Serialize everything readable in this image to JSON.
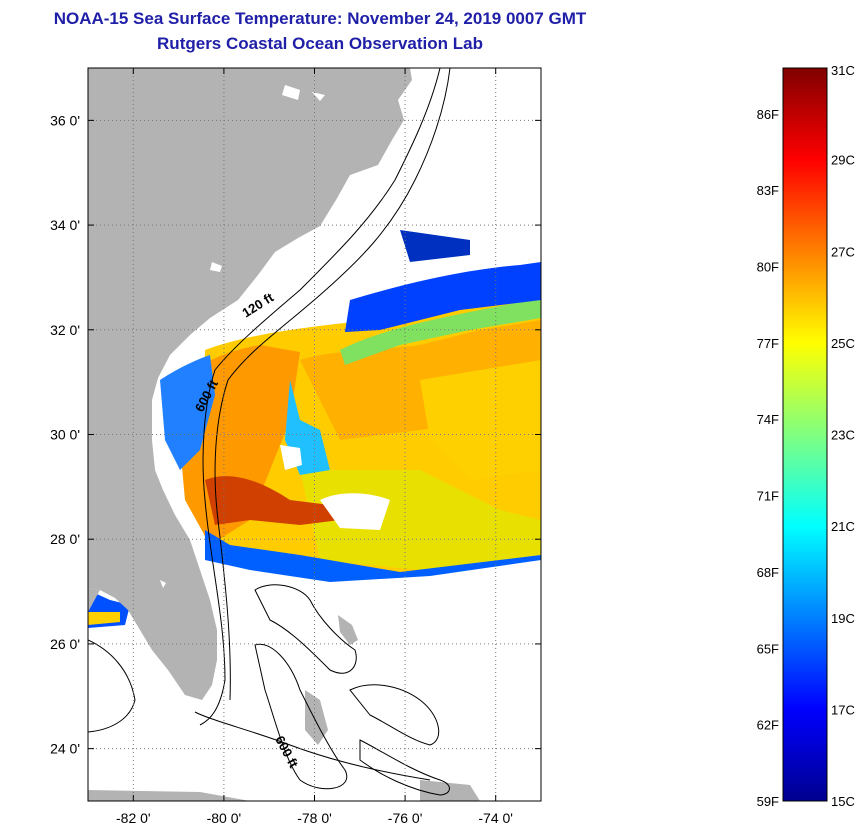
{
  "title": "NOAA-15 Sea Surface Temperature:  November 24, 2019 0007 GMT",
  "subtitle": "Rutgers Coastal Ocean Observation Lab",
  "map": {
    "lon_range": [
      -83,
      -73
    ],
    "lat_range": [
      23,
      37
    ],
    "lon_ticks": [
      {
        "value": -82,
        "label": "-82 0'"
      },
      {
        "value": -80,
        "label": "-80 0'"
      },
      {
        "value": -78,
        "label": "-78 0'"
      },
      {
        "value": -76,
        "label": "-76 0'"
      },
      {
        "value": -74,
        "label": "-74 0'"
      }
    ],
    "lat_ticks": [
      {
        "value": 36,
        "label": "36 0'"
      },
      {
        "value": 34,
        "label": "34 0'"
      },
      {
        "value": 32,
        "label": "32 0'"
      },
      {
        "value": 30,
        "label": "30 0'"
      },
      {
        "value": 28,
        "label": "28 0'"
      },
      {
        "value": 26,
        "label": "26 0'"
      },
      {
        "value": 24,
        "label": "24 0'"
      }
    ],
    "contour_labels": [
      {
        "text": "120 ft",
        "lon": -79.2,
        "lat": 32.4,
        "angle": -32
      },
      {
        "text": "600 ft",
        "lon": -80.3,
        "lat": 30.7,
        "angle": -62
      },
      {
        "text": "600 ft",
        "lon": -78.7,
        "lat": 23.9,
        "angle": 62
      }
    ],
    "colors": {
      "land": "#b3b3b3",
      "water": "#ffffff",
      "grid": "#777777"
    }
  },
  "colorbar": {
    "min_c": 15,
    "max_c": 31,
    "celsius_labels": [
      "31C",
      "29C",
      "27C",
      "25C",
      "23C",
      "21C",
      "19C",
      "17C",
      "15C"
    ],
    "fahrenheit_labels": [
      "86F",
      "83F",
      "80F",
      "77F",
      "74F",
      "71F",
      "68F",
      "65F",
      "62F",
      "59F"
    ],
    "colormap": [
      "#00008f",
      "#0000ff",
      "#0080ff",
      "#00ffff",
      "#80ff80",
      "#ffff00",
      "#ff8000",
      "#ff0000",
      "#800000"
    ]
  }
}
